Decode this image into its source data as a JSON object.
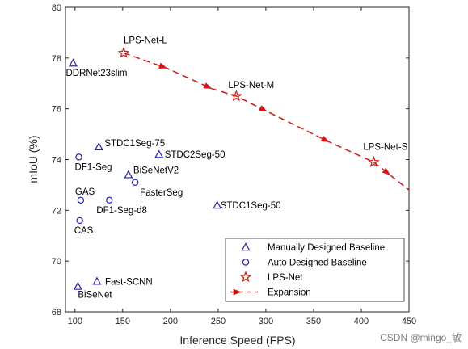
{
  "chart_data": {
    "type": "scatter",
    "xlabel": "Inference Speed (FPS)",
    "ylabel": "mIoU (%)",
    "xlim": [
      90,
      450
    ],
    "ylim": [
      68,
      80
    ],
    "x_ticks": [
      100,
      150,
      200,
      250,
      300,
      350,
      400,
      450
    ],
    "y_ticks": [
      68,
      70,
      72,
      74,
      76,
      78,
      80
    ],
    "grid": false,
    "legend_position": "bottom-right",
    "series": [
      {
        "name": "Manually Designed Baseline",
        "marker": "triangle",
        "color": "#1f1fd0",
        "points": [
          {
            "label": "DDRNet23slim",
            "x": 98,
            "y": 77.8
          },
          {
            "label": "STDC1Seg-75",
            "x": 125,
            "y": 74.5
          },
          {
            "label": "STDC2Seg-50",
            "x": 188,
            "y": 74.2
          },
          {
            "label": "BiSeNetV2",
            "x": 156,
            "y": 73.4
          },
          {
            "label": "STDC1Seg-50",
            "x": 249,
            "y": 72.2
          },
          {
            "label": "Fast-SCNN",
            "x": 123,
            "y": 69.2
          },
          {
            "label": "BiSeNet",
            "x": 103,
            "y": 69.0
          }
        ]
      },
      {
        "name": "Auto Designed Baseline",
        "marker": "circle",
        "color": "#1f1fd0",
        "points": [
          {
            "label": "DF1-Seg",
            "x": 104,
            "y": 74.1
          },
          {
            "label": "FasterSeg",
            "x": 163,
            "y": 73.1
          },
          {
            "label": "GAS",
            "x": 106,
            "y": 72.4
          },
          {
            "label": "DF1-Seg-d8",
            "x": 136,
            "y": 72.4
          },
          {
            "label": "CAS",
            "x": 105,
            "y": 71.6
          }
        ]
      },
      {
        "name": "LPS-Net",
        "marker": "star",
        "color": "#e01010",
        "points": [
          {
            "label": "LPS-Net-L",
            "x": 151,
            "y": 78.2
          },
          {
            "label": "LPS-Net-M",
            "x": 269,
            "y": 76.5
          },
          {
            "label": "LPS-Net-S",
            "x": 413,
            "y": 73.9
          }
        ]
      },
      {
        "name": "Expansion",
        "marker": "dashed-arrow-line",
        "color": "#e01010",
        "points": [
          {
            "x": 151,
            "y": 78.2
          },
          {
            "x": 196,
            "y": 77.6
          },
          {
            "x": 243,
            "y": 76.8
          },
          {
            "x": 269,
            "y": 76.5
          },
          {
            "x": 301,
            "y": 75.9
          },
          {
            "x": 366,
            "y": 74.7
          },
          {
            "x": 413,
            "y": 73.9
          },
          {
            "x": 430,
            "y": 73.4
          },
          {
            "x": 450,
            "y": 72.8
          }
        ],
        "arrows_at": [
          1,
          2,
          4,
          5,
          7
        ]
      }
    ]
  },
  "watermark": "CSDN @mingo_敏"
}
